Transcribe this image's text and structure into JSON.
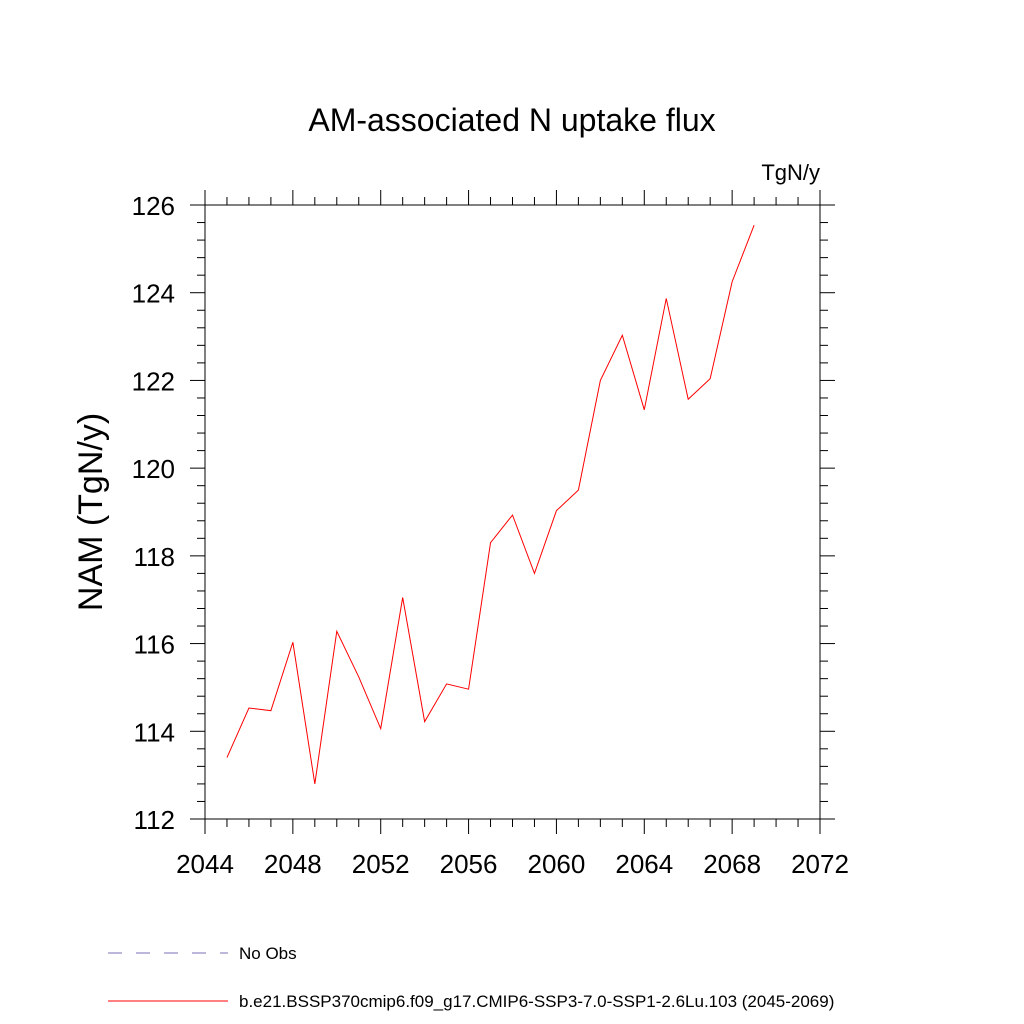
{
  "chart_data": {
    "type": "line",
    "title": "AM-associated N uptake flux",
    "units": "TgN/y",
    "xlabel": "",
    "ylabel": "NAM  (TgN/y)",
    "xlim": [
      2044,
      2072
    ],
    "ylim": [
      112,
      126
    ],
    "xticks": [
      "2044",
      "2048",
      "2052",
      "2056",
      "2060",
      "2064",
      "2068",
      "2072"
    ],
    "yticks": [
      "112",
      "114",
      "116",
      "118",
      "120",
      "122",
      "124",
      "126"
    ],
    "grid": false,
    "series": [
      {
        "name": "b.e21.BSSP370cmip6.f09_g17.CMIP6-SSP3-7.0-SSP1-2.6Lu.103 (2045-2069)",
        "color": "#ff0000",
        "style": "solid",
        "x": [
          2045,
          2046,
          2047,
          2048,
          2049,
          2050,
          2051,
          2052,
          2053,
          2054,
          2055,
          2056,
          2057,
          2058,
          2059,
          2060,
          2061,
          2062,
          2063,
          2064,
          2065,
          2066,
          2067,
          2068,
          2069
        ],
        "values": [
          113.4,
          114.53,
          114.47,
          116.03,
          112.8,
          116.28,
          115.24,
          114.06,
          117.05,
          114.22,
          115.08,
          114.96,
          118.3,
          118.93,
          117.6,
          119.03,
          119.5,
          122.0,
          123.03,
          121.33,
          123.87,
          121.57,
          122.04,
          124.25,
          125.54
        ]
      }
    ],
    "legend": [
      {
        "label": "No Obs",
        "color": "#7b6fb8",
        "style": "dashed"
      },
      {
        "label": "b.e21.BSSP370cmip6.f09_g17.CMIP6-SSP3-7.0-SSP1-2.6Lu.103 (2045-2069)",
        "color": "#ff0000",
        "style": "solid"
      }
    ],
    "legend_position": "bottom"
  }
}
